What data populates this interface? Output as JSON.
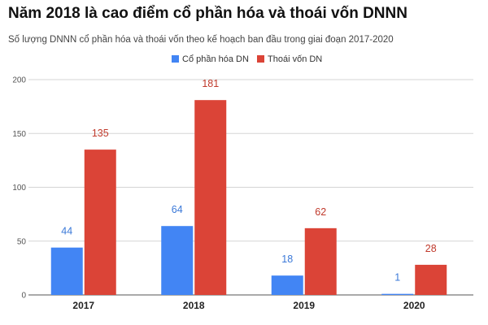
{
  "header": {
    "title": "Năm 2018 là cao điểm cổ phần hóa và thoái vốn DNNN",
    "subtitle": "Số lượng DNNN cổ phần hóa và thoái vốn theo kế hoạch ban đầu trong giai đoạn 2017-2020"
  },
  "chart_data": {
    "type": "bar",
    "title": "Năm 2018 là cao điểm cổ phần hóa và thoái vốn DNNN",
    "subtitle": "Số lượng DNNN cổ phần hóa và thoái vốn theo kế hoạch ban đầu trong giai đoạn 2017-2020",
    "xlabel": "",
    "ylabel": "",
    "categories": [
      "2017",
      "2018",
      "2019",
      "2020"
    ],
    "series": [
      {
        "name": "Cổ phần hóa DN",
        "color": "#4285f4",
        "values": [
          44,
          64,
          18,
          1
        ]
      },
      {
        "name": "Thoái vốn DN",
        "color": "#db4437",
        "values": [
          135,
          181,
          62,
          28
        ]
      }
    ],
    "ylim": [
      0,
      200
    ],
    "yticks": [
      0,
      50,
      100,
      150,
      200
    ],
    "grid": true,
    "legend_position": "top-center"
  }
}
